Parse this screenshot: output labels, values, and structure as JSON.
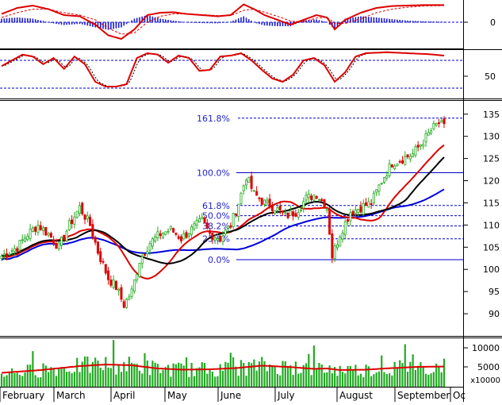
{
  "chart_data": {
    "type": "stock-chart",
    "title": "",
    "months": [
      "February",
      "March",
      "April",
      "May",
      "June",
      "July",
      "August",
      "September",
      "Oc"
    ],
    "price_axis": {
      "ticks": [
        90,
        95,
        100,
        105,
        110,
        115,
        120,
        125,
        130,
        135
      ],
      "ylim": [
        85,
        138
      ]
    },
    "macd_axis": {
      "ticks": [
        0
      ]
    },
    "stoch_axis": {
      "ticks": [
        50
      ]
    },
    "volume_axis": {
      "ticks": [
        "10000",
        "5000"
      ],
      "unit_label": "x10000",
      "ylim": [
        0,
        12000
      ]
    },
    "fibonacci": [
      {
        "label": "161.8%",
        "value": 134.1
      },
      {
        "label": "100.0%",
        "value": 121.8
      },
      {
        "label": "61.8%",
        "value": 114.4
      },
      {
        "label": "50.0%",
        "value": 112.1
      },
      {
        "label": "38.2%",
        "value": 109.8
      },
      {
        "label": "23.6%",
        "value": 106.9
      },
      {
        "label": "0.0%",
        "value": 102.2
      }
    ],
    "price_anchors": [
      [
        0,
        103
      ],
      [
        6,
        105
      ],
      [
        10,
        108
      ],
      [
        14,
        110
      ],
      [
        18,
        108
      ],
      [
        22,
        105
      ],
      [
        26,
        110
      ],
      [
        30,
        114
      ],
      [
        34,
        110
      ],
      [
        37,
        104
      ],
      [
        41,
        98
      ],
      [
        44,
        96
      ],
      [
        47,
        92
      ],
      [
        50,
        95
      ],
      [
        53,
        102
      ],
      [
        57,
        106
      ],
      [
        61,
        108
      ],
      [
        65,
        109
      ],
      [
        69,
        107
      ],
      [
        73,
        109
      ],
      [
        77,
        111
      ],
      [
        80,
        108
      ],
      [
        84,
        107
      ],
      [
        88,
        110
      ],
      [
        91,
        115
      ],
      [
        94,
        121
      ],
      [
        97,
        117
      ],
      [
        101,
        115
      ],
      [
        105,
        114
      ],
      [
        109,
        112
      ],
      [
        113,
        113
      ],
      [
        117,
        116
      ],
      [
        121,
        117
      ],
      [
        125,
        114
      ],
      [
        127,
        103
      ],
      [
        130,
        108
      ],
      [
        134,
        113
      ],
      [
        138,
        114
      ],
      [
        142,
        115
      ],
      [
        146,
        120
      ],
      [
        150,
        124
      ],
      [
        154,
        125
      ],
      [
        158,
        126
      ],
      [
        162,
        129
      ],
      [
        166,
        132
      ],
      [
        168,
        133
      ],
      [
        170,
        132
      ]
    ],
    "volume_avg": [
      [
        0,
        3500
      ],
      [
        15,
        4200
      ],
      [
        30,
        5200
      ],
      [
        40,
        5600
      ],
      [
        50,
        5400
      ],
      [
        60,
        4600
      ],
      [
        70,
        4300
      ],
      [
        80,
        4400
      ],
      [
        90,
        4700
      ],
      [
        100,
        5300
      ],
      [
        110,
        5000
      ],
      [
        120,
        4500
      ],
      [
        125,
        4600
      ],
      [
        130,
        4200
      ],
      [
        140,
        4300
      ],
      [
        150,
        4700
      ],
      [
        160,
        5000
      ],
      [
        170,
        5100
      ]
    ],
    "macd_line": [
      [
        0,
        35
      ],
      [
        6,
        60
      ],
      [
        12,
        70
      ],
      [
        18,
        55
      ],
      [
        24,
        30
      ],
      [
        30,
        25
      ],
      [
        36,
        -10
      ],
      [
        41,
        -55
      ],
      [
        46,
        -70
      ],
      [
        51,
        -30
      ],
      [
        56,
        30
      ],
      [
        61,
        40
      ],
      [
        66,
        42
      ],
      [
        71,
        35
      ],
      [
        77,
        30
      ],
      [
        83,
        25
      ],
      [
        88,
        30
      ],
      [
        93,
        75
      ],
      [
        97,
        55
      ],
      [
        101,
        30
      ],
      [
        106,
        10
      ],
      [
        111,
        -10
      ],
      [
        116,
        10
      ],
      [
        121,
        30
      ],
      [
        125,
        20
      ],
      [
        128,
        -30
      ],
      [
        132,
        10
      ],
      [
        138,
        40
      ],
      [
        144,
        60
      ],
      [
        150,
        68
      ],
      [
        156,
        70
      ],
      [
        162,
        72
      ],
      [
        170,
        72
      ]
    ],
    "macd_signal": [
      [
        0,
        20
      ],
      [
        6,
        40
      ],
      [
        12,
        55
      ],
      [
        18,
        55
      ],
      [
        24,
        40
      ],
      [
        30,
        30
      ],
      [
        36,
        10
      ],
      [
        41,
        -25
      ],
      [
        46,
        -50
      ],
      [
        51,
        -45
      ],
      [
        56,
        0
      ],
      [
        61,
        25
      ],
      [
        66,
        35
      ],
      [
        71,
        35
      ],
      [
        77,
        32
      ],
      [
        83,
        28
      ],
      [
        88,
        28
      ],
      [
        93,
        50
      ],
      [
        97,
        55
      ],
      [
        101,
        42
      ],
      [
        106,
        25
      ],
      [
        111,
        5
      ],
      [
        116,
        2
      ],
      [
        121,
        18
      ],
      [
        125,
        20
      ],
      [
        128,
        -5
      ],
      [
        132,
        -5
      ],
      [
        138,
        15
      ],
      [
        144,
        40
      ],
      [
        150,
        55
      ],
      [
        156,
        63
      ],
      [
        162,
        68
      ],
      [
        170,
        70
      ]
    ],
    "stoch_k": [
      [
        0,
        68
      ],
      [
        4,
        80
      ],
      [
        8,
        92
      ],
      [
        12,
        88
      ],
      [
        16,
        72
      ],
      [
        20,
        85
      ],
      [
        24,
        62
      ],
      [
        28,
        88
      ],
      [
        32,
        72
      ],
      [
        36,
        35
      ],
      [
        40,
        25
      ],
      [
        44,
        25
      ],
      [
        48,
        30
      ],
      [
        52,
        85
      ],
      [
        56,
        95
      ],
      [
        60,
        92
      ],
      [
        64,
        75
      ],
      [
        68,
        90
      ],
      [
        72,
        85
      ],
      [
        76,
        58
      ],
      [
        80,
        60
      ],
      [
        84,
        88
      ],
      [
        88,
        90
      ],
      [
        92,
        95
      ],
      [
        96,
        80
      ],
      [
        100,
        60
      ],
      [
        104,
        42
      ],
      [
        108,
        35
      ],
      [
        112,
        50
      ],
      [
        116,
        80
      ],
      [
        120,
        85
      ],
      [
        124,
        70
      ],
      [
        128,
        35
      ],
      [
        132,
        55
      ],
      [
        136,
        88
      ],
      [
        140,
        95
      ],
      [
        148,
        97
      ],
      [
        156,
        95
      ],
      [
        164,
        93
      ],
      [
        170,
        90
      ]
    ]
  }
}
